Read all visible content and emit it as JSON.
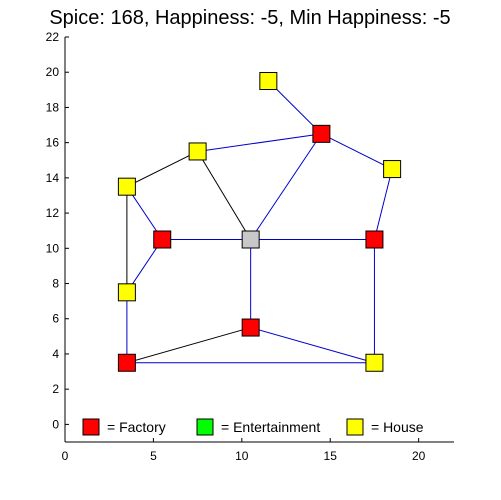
{
  "chart_data": {
    "type": "network",
    "title": "Spice: 168, Happiness: -5, Min Happiness: -5",
    "xlim": [
      0,
      22
    ],
    "ylim": [
      -1,
      22
    ],
    "xticks": [
      0,
      5,
      10,
      15,
      20
    ],
    "yticks": [
      0,
      2,
      4,
      6,
      8,
      10,
      12,
      14,
      16,
      18,
      20,
      22
    ],
    "grid": false,
    "colors": {
      "factory": "#ff0000",
      "entertainment": "#00ff00",
      "house": "#ffff00",
      "center": "#c8c8c8",
      "edge_blue": "#0000cc",
      "edge_black": "#000000"
    },
    "nodes": [
      {
        "id": "h1",
        "kind": "house",
        "x": 11.5,
        "y": 19.5
      },
      {
        "id": "f1",
        "kind": "factory",
        "x": 14.5,
        "y": 16.5
      },
      {
        "id": "h2",
        "kind": "house",
        "x": 7.5,
        "y": 15.5
      },
      {
        "id": "h3",
        "kind": "house",
        "x": 18.5,
        "y": 14.5
      },
      {
        "id": "h4",
        "kind": "house",
        "x": 3.5,
        "y": 13.5
      },
      {
        "id": "f2",
        "kind": "factory",
        "x": 5.5,
        "y": 10.5
      },
      {
        "id": "c1",
        "kind": "center",
        "x": 10.5,
        "y": 10.5
      },
      {
        "id": "f3",
        "kind": "factory",
        "x": 17.5,
        "y": 10.5
      },
      {
        "id": "h5",
        "kind": "house",
        "x": 3.5,
        "y": 7.5
      },
      {
        "id": "f4",
        "kind": "factory",
        "x": 10.5,
        "y": 5.5
      },
      {
        "id": "f5",
        "kind": "factory",
        "x": 3.5,
        "y": 3.5
      },
      {
        "id": "h6",
        "kind": "house",
        "x": 17.5,
        "y": 3.5
      }
    ],
    "edges": [
      {
        "from": "h1",
        "to": "f1",
        "color": "blue"
      },
      {
        "from": "h2",
        "to": "f1",
        "color": "blue"
      },
      {
        "from": "f1",
        "to": "h3",
        "color": "blue"
      },
      {
        "from": "f1",
        "to": "c1",
        "color": "blue"
      },
      {
        "from": "h4",
        "to": "h2",
        "color": "black"
      },
      {
        "from": "h2",
        "to": "c1",
        "color": "black"
      },
      {
        "from": "h3",
        "to": "f3",
        "color": "blue"
      },
      {
        "from": "h4",
        "to": "f2",
        "color": "blue"
      },
      {
        "from": "h4",
        "to": "h5",
        "color": "black"
      },
      {
        "from": "f2",
        "to": "c1",
        "color": "blue"
      },
      {
        "from": "c1",
        "to": "f3",
        "color": "blue"
      },
      {
        "from": "f2",
        "to": "h5",
        "color": "blue"
      },
      {
        "from": "c1",
        "to": "f4",
        "color": "blue"
      },
      {
        "from": "f3",
        "to": "h6",
        "color": "blue"
      },
      {
        "from": "h5",
        "to": "f5",
        "color": "blue"
      },
      {
        "from": "f5",
        "to": "f4",
        "color": "black"
      },
      {
        "from": "f4",
        "to": "h6",
        "color": "blue"
      },
      {
        "from": "f5",
        "to": "h6",
        "color": "blue"
      }
    ],
    "legend": {
      "placement": "bottom",
      "items": [
        {
          "kind": "factory",
          "label": "= Factory"
        },
        {
          "kind": "entertainment",
          "label": "= Entertainment"
        },
        {
          "kind": "house",
          "label": "= House"
        }
      ]
    }
  }
}
